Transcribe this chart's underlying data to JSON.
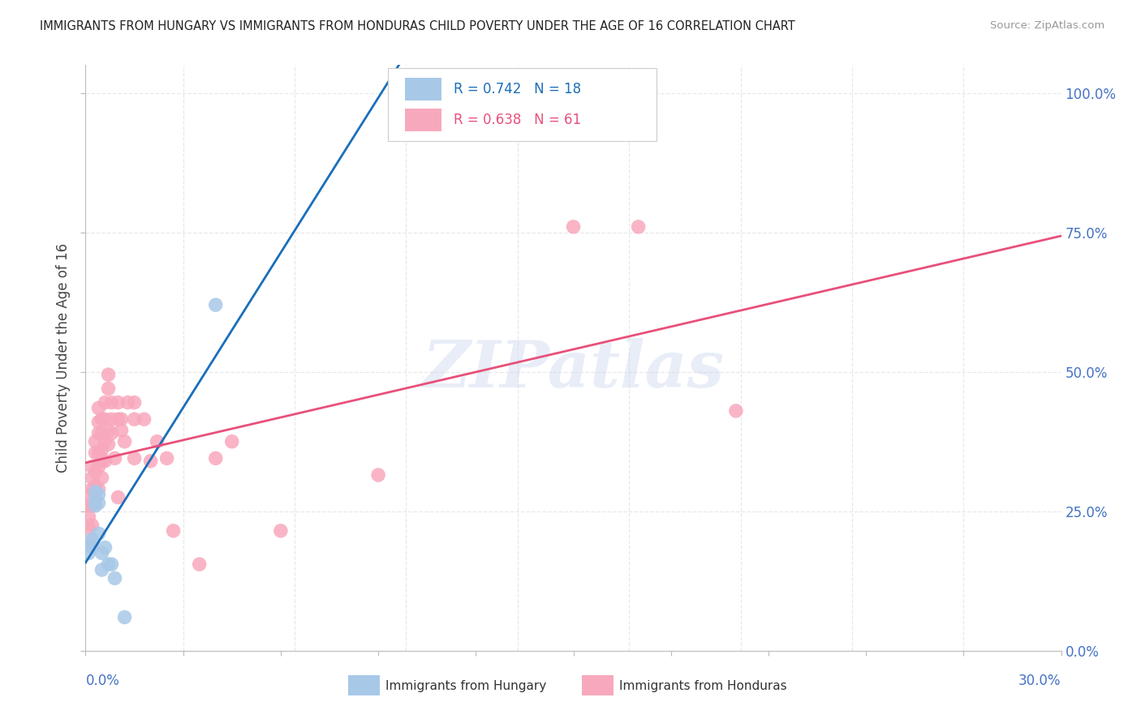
{
  "title": "IMMIGRANTS FROM HUNGARY VS IMMIGRANTS FROM HONDURAS CHILD POVERTY UNDER THE AGE OF 16 CORRELATION CHART",
  "source": "Source: ZipAtlas.com",
  "ylabel": "Child Poverty Under the Age of 16",
  "hungary_color": "#a8c8e8",
  "honduras_color": "#f8a8bc",
  "hungary_line_color": "#1a6fba",
  "honduras_line_color": "#e8507a",
  "hungary_dash_color": "#90bcd8",
  "hungary_R": 0.742,
  "hungary_N": 18,
  "honduras_R": 0.638,
  "honduras_N": 61,
  "right_label_color": "#4472c4",
  "title_color": "#222222",
  "source_color": "#999999",
  "background_color": "#ffffff",
  "grid_color": "#e8e8e8",
  "watermark_color": "#ccd8ee",
  "hungary_scatter": [
    [
      0.001,
      0.175
    ],
    [
      0.001,
      0.19
    ],
    [
      0.002,
      0.185
    ],
    [
      0.002,
      0.2
    ],
    [
      0.003,
      0.27
    ],
    [
      0.003,
      0.285
    ],
    [
      0.003,
      0.26
    ],
    [
      0.004,
      0.28
    ],
    [
      0.004,
      0.265
    ],
    [
      0.004,
      0.21
    ],
    [
      0.005,
      0.175
    ],
    [
      0.005,
      0.145
    ],
    [
      0.006,
      0.185
    ],
    [
      0.007,
      0.155
    ],
    [
      0.008,
      0.155
    ],
    [
      0.009,
      0.13
    ],
    [
      0.04,
      0.62
    ],
    [
      0.012,
      0.06
    ]
  ],
  "honduras_scatter": [
    [
      0.001,
      0.22
    ],
    [
      0.001,
      0.24
    ],
    [
      0.001,
      0.26
    ],
    [
      0.001,
      0.28
    ],
    [
      0.002,
      0.195
    ],
    [
      0.002,
      0.225
    ],
    [
      0.002,
      0.26
    ],
    [
      0.002,
      0.29
    ],
    [
      0.002,
      0.31
    ],
    [
      0.002,
      0.33
    ],
    [
      0.003,
      0.27
    ],
    [
      0.003,
      0.295
    ],
    [
      0.003,
      0.32
    ],
    [
      0.003,
      0.355
    ],
    [
      0.003,
      0.375
    ],
    [
      0.004,
      0.29
    ],
    [
      0.004,
      0.33
    ],
    [
      0.004,
      0.355
    ],
    [
      0.004,
      0.39
    ],
    [
      0.004,
      0.41
    ],
    [
      0.004,
      0.435
    ],
    [
      0.005,
      0.31
    ],
    [
      0.005,
      0.34
    ],
    [
      0.005,
      0.36
    ],
    [
      0.005,
      0.39
    ],
    [
      0.005,
      0.415
    ],
    [
      0.006,
      0.34
    ],
    [
      0.006,
      0.375
    ],
    [
      0.006,
      0.415
    ],
    [
      0.006,
      0.445
    ],
    [
      0.007,
      0.37
    ],
    [
      0.007,
      0.395
    ],
    [
      0.007,
      0.47
    ],
    [
      0.007,
      0.495
    ],
    [
      0.008,
      0.39
    ],
    [
      0.008,
      0.415
    ],
    [
      0.008,
      0.445
    ],
    [
      0.009,
      0.345
    ],
    [
      0.01,
      0.275
    ],
    [
      0.01,
      0.415
    ],
    [
      0.01,
      0.445
    ],
    [
      0.011,
      0.395
    ],
    [
      0.011,
      0.415
    ],
    [
      0.012,
      0.375
    ],
    [
      0.013,
      0.445
    ],
    [
      0.015,
      0.345
    ],
    [
      0.015,
      0.415
    ],
    [
      0.015,
      0.445
    ],
    [
      0.018,
      0.415
    ],
    [
      0.02,
      0.34
    ],
    [
      0.022,
      0.375
    ],
    [
      0.025,
      0.345
    ],
    [
      0.027,
      0.215
    ],
    [
      0.035,
      0.155
    ],
    [
      0.04,
      0.345
    ],
    [
      0.045,
      0.375
    ],
    [
      0.06,
      0.215
    ],
    [
      0.09,
      0.315
    ],
    [
      0.15,
      0.76
    ],
    [
      0.17,
      0.76
    ],
    [
      0.2,
      0.43
    ]
  ],
  "xlim": [
    0.0,
    0.3
  ],
  "ylim": [
    0.0,
    1.05
  ],
  "yticks": [
    0.0,
    0.25,
    0.5,
    0.75,
    1.0
  ],
  "yticklabels": [
    "0.0%",
    "25.0%",
    "50.0%",
    "75.0%",
    "100.0%"
  ]
}
